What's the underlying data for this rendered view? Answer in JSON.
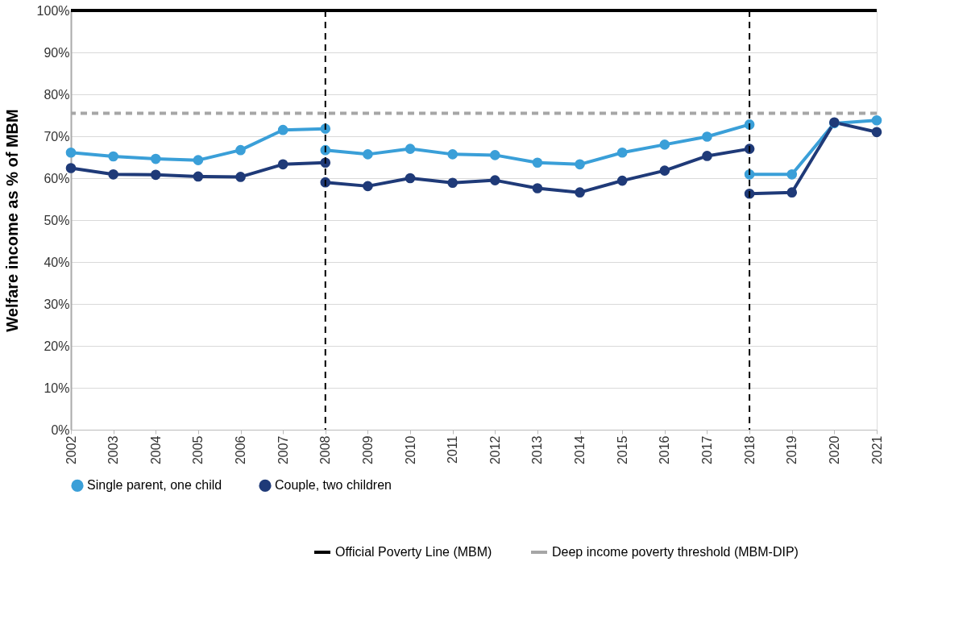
{
  "chart_data": {
    "type": "line",
    "xlabel": null,
    "ylabel": "Welfare income as % of MBM",
    "xlim": [
      2002,
      2021
    ],
    "xticks": [
      2002,
      2003,
      2004,
      2005,
      2006,
      2007,
      2008,
      2009,
      2010,
      2011,
      2012,
      2013,
      2014,
      2015,
      2016,
      2017,
      2018,
      2019,
      2020,
      2021
    ],
    "ylim": [
      0,
      100
    ],
    "yticks": [
      {
        "value": 0,
        "label": "0%"
      },
      {
        "value": 10,
        "label": "10%"
      },
      {
        "value": 20,
        "label": "20%"
      },
      {
        "value": 30,
        "label": "30%"
      },
      {
        "value": 40,
        "label": "40%"
      },
      {
        "value": 50,
        "label": "50%"
      },
      {
        "value": 60,
        "label": "60%"
      },
      {
        "value": 70,
        "label": "70%"
      },
      {
        "value": 80,
        "label": "80%"
      },
      {
        "value": 90,
        "label": "90%"
      },
      {
        "value": 100,
        "label": "100%"
      }
    ],
    "grid": "y",
    "legend": "bottom",
    "marker": "circle",
    "line_style": "solid",
    "series": [
      {
        "name": "Single parent, one child",
        "color": "#3a9fd8",
        "x": [
          2002,
          2003,
          2004,
          2005,
          2006,
          2007,
          2008,
          2008,
          2009,
          2010,
          2011,
          2012,
          2013,
          2014,
          2015,
          2016,
          2017,
          2018,
          2018,
          2019,
          2020,
          2021
        ],
        "values": [
          66.1,
          65.2,
          64.6,
          64.3,
          66.7,
          71.5,
          71.8,
          66.7,
          65.7,
          67.0,
          65.7,
          65.5,
          63.7,
          63.3,
          66.1,
          68.0,
          69.9,
          72.8,
          60.9,
          60.9,
          73.1,
          73.8
        ]
      },
      {
        "name": "Couple, two children",
        "color": "#1f3a78",
        "x": [
          2002,
          2003,
          2004,
          2005,
          2006,
          2007,
          2008,
          2008,
          2009,
          2010,
          2011,
          2012,
          2013,
          2014,
          2015,
          2016,
          2017,
          2018,
          2018,
          2019,
          2020,
          2021
        ],
        "values": [
          62.4,
          60.9,
          60.8,
          60.4,
          60.3,
          63.3,
          63.7,
          59.0,
          58.1,
          60.0,
          58.9,
          59.5,
          57.6,
          56.6,
          59.4,
          61.8,
          65.3,
          67.0,
          56.3,
          56.6,
          73.3,
          71.0
        ]
      }
    ],
    "ref_lines": [
      {
        "axis": "y",
        "value": 100,
        "label": "Official Poverty Line (MBM)",
        "color": "#000000",
        "line_style": "solid"
      },
      {
        "axis": "y",
        "value": 75.5,
        "label": "Deep income poverty threshold (MBM-DIP)",
        "color": "#a6a6a6",
        "line_style": "dashed"
      },
      {
        "axis": "x",
        "value": 2008,
        "color": "#000000",
        "line_style": "dashed"
      },
      {
        "axis": "x",
        "value": 2018,
        "color": "#000000",
        "line_style": "dashed"
      }
    ]
  }
}
